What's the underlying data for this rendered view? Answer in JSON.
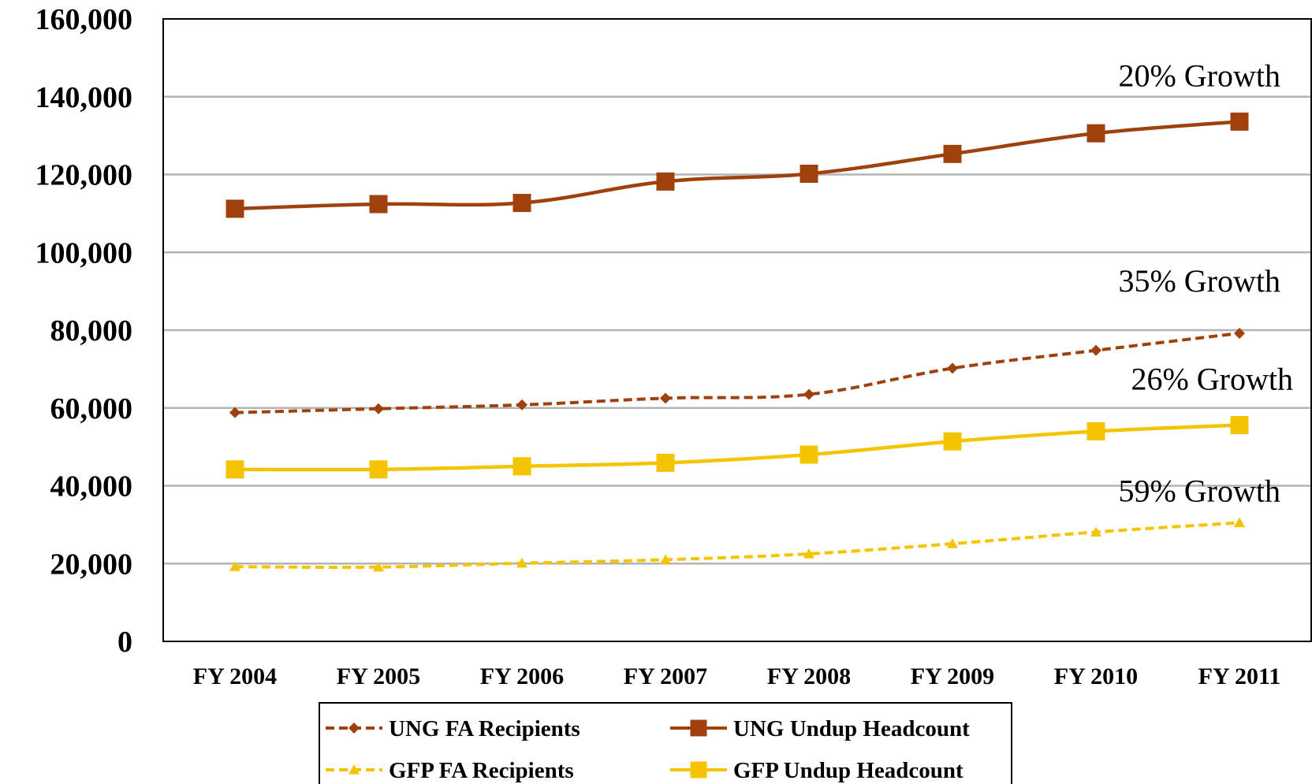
{
  "chart_data": {
    "type": "line",
    "categories": [
      "FY 2004",
      "FY 2005",
      "FY 2006",
      "FY 2007",
      "FY 2008",
      "FY 2009",
      "FY 2010",
      "FY 2011"
    ],
    "ylim": [
      0,
      160000
    ],
    "yticks": [
      0,
      20000,
      40000,
      60000,
      80000,
      100000,
      120000,
      140000,
      160000
    ],
    "ytick_labels": [
      "0",
      "20,000",
      "40,000",
      "60,000",
      "80,000",
      "100,000",
      "120,000",
      "140,000",
      "160,000"
    ],
    "grid": true,
    "legend_position": "bottom",
    "series": [
      {
        "name": "UNG FA Recipients",
        "color": "#A0410D",
        "dash": true,
        "marker": "diamond",
        "values": [
          58800,
          59800,
          60800,
          62500,
          63500,
          70200,
          74800,
          79200
        ]
      },
      {
        "name": "UNG Undup Headcount",
        "color": "#A0410D",
        "dash": false,
        "marker": "square",
        "values": [
          111200,
          112400,
          112700,
          118200,
          120200,
          125300,
          130600,
          133600
        ]
      },
      {
        "name": "GFP FA Recipients",
        "color": "#F5C400",
        "dash": true,
        "marker": "triangle",
        "values": [
          19200,
          19100,
          20100,
          21000,
          22500,
          25100,
          28100,
          30500
        ]
      },
      {
        "name": "GFP Undup Headcount",
        "color": "#F5C400",
        "dash": false,
        "marker": "square",
        "values": [
          44200,
          44200,
          45000,
          45900,
          48000,
          51400,
          54000,
          55600
        ]
      }
    ],
    "legend_order": [
      0,
      1,
      2,
      3
    ],
    "annotations": [
      {
        "text": "20% Growth",
        "series": 1
      },
      {
        "text": "35% Growth",
        "series": 0
      },
      {
        "text": "26% Growth",
        "series": 3
      },
      {
        "text": "59% Growth",
        "series": 2
      }
    ]
  }
}
